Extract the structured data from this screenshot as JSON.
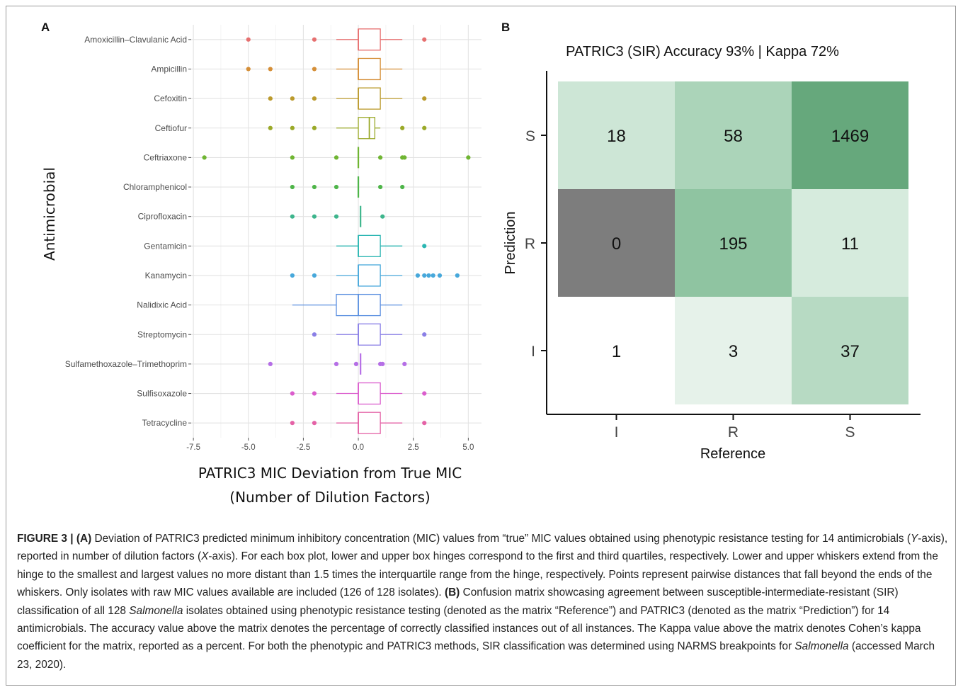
{
  "panel_labels": {
    "a": "A",
    "b": "B"
  },
  "chart_data": [
    {
      "type": "boxplot",
      "panel": "A",
      "xlabel_line1": "PATRIC3 MIC Deviation from True MIC",
      "xlabel_line2": "(Number of Dilution Factors)",
      "ylabel": "Antimicrobial",
      "xlim": [
        -7.6,
        5.6
      ],
      "xticks": [
        -7.5,
        -5.0,
        -2.5,
        0.0,
        2.5,
        5.0
      ],
      "xtick_labels": [
        "-7.5",
        "-5.0",
        "-2.5",
        "0.0",
        "2.5",
        "5.0"
      ],
      "grid": true,
      "categories": [
        {
          "name": "Amoxicillin–Clavulanic Acid",
          "color": "#e66f6f",
          "q1": 0,
          "median": 0,
          "q3": 1,
          "wlo": -1,
          "whi": 2,
          "outliers": [
            -5,
            -2,
            3
          ]
        },
        {
          "name": "Ampicillin",
          "color": "#d58e36",
          "q1": 0,
          "median": 0,
          "q3": 1,
          "wlo": -1,
          "whi": 2,
          "outliers": [
            -5,
            -4,
            -2
          ]
        },
        {
          "name": "Cefoxitin",
          "color": "#bb9a2c",
          "q1": 0,
          "median": 0,
          "q3": 1,
          "wlo": -1,
          "whi": 2,
          "outliers": [
            -4,
            -3,
            -2,
            3
          ]
        },
        {
          "name": "Ceftiofur",
          "color": "#9aa928",
          "q1": 0,
          "median": 0.5,
          "q3": 0.75,
          "wlo": -1,
          "whi": 1,
          "outliers": [
            -4,
            -3,
            -2,
            2,
            3
          ]
        },
        {
          "name": "Ceftriaxone",
          "color": "#6fb532",
          "q1": 0,
          "median": 0,
          "q3": 0,
          "wlo": 0,
          "whi": 0,
          "outliers": [
            -7,
            -3,
            -1,
            1,
            2,
            2.1,
            5
          ]
        },
        {
          "name": "Chloramphenicol",
          "color": "#4eb549",
          "q1": 0,
          "median": 0,
          "q3": 0,
          "wlo": 0,
          "whi": 0,
          "outliers": [
            -3,
            -2,
            -1,
            1,
            2
          ]
        },
        {
          "name": "Ciprofloxacin",
          "color": "#3db58c",
          "q1": 0.1,
          "median": 0.1,
          "q3": 0.1,
          "wlo": 0.1,
          "whi": 0.1,
          "outliers": [
            -3,
            -2,
            -1,
            1.1
          ]
        },
        {
          "name": "Gentamicin",
          "color": "#2bb6b2",
          "q1": 0,
          "median": 0,
          "q3": 1,
          "wlo": -1,
          "whi": 2,
          "outliers": [
            3
          ]
        },
        {
          "name": "Kanamycin",
          "color": "#47a8db",
          "q1": 0,
          "median": 0,
          "q3": 1,
          "wlo": -1,
          "whi": 2,
          "outliers": [
            -3,
            -2,
            2.7,
            3,
            3.2,
            3.4,
            3.7,
            4.5
          ]
        },
        {
          "name": "Nalidixic Acid",
          "color": "#5a8fe0",
          "q1": -1,
          "median": 0,
          "q3": 1,
          "wlo": -3,
          "whi": 2,
          "outliers": []
        },
        {
          "name": "Streptomycin",
          "color": "#8a7fe6",
          "q1": 0,
          "median": 0,
          "q3": 1,
          "wlo": -1,
          "whi": 2,
          "outliers": [
            -2,
            3
          ]
        },
        {
          "name": "Sulfamethoxazole–Trimethoprim",
          "color": "#b56ee6",
          "q1": 0.1,
          "median": 0.1,
          "q3": 0.1,
          "wlo": 0.1,
          "whi": 0.1,
          "outliers": [
            -4,
            -1,
            -0.1,
            1,
            1.1,
            2.1
          ]
        },
        {
          "name": "Sulfisoxazole",
          "color": "#db5dcd",
          "q1": 0,
          "median": 0,
          "q3": 1,
          "wlo": -1,
          "whi": 2,
          "outliers": [
            -3,
            -2,
            3
          ]
        },
        {
          "name": "Tetracycline",
          "color": "#e462a6",
          "q1": 0,
          "median": 0,
          "q3": 1,
          "wlo": -1,
          "whi": 2,
          "outliers": [
            -3,
            -2,
            3
          ]
        }
      ]
    },
    {
      "type": "heatmap",
      "panel": "B",
      "title": "PATRIC3 (SIR) Accuracy 93% | Kappa 72%",
      "xlabel": "Reference",
      "ylabel": "Prediction",
      "x_categories": [
        "I",
        "R",
        "S"
      ],
      "y_categories": [
        "S",
        "R",
        "I"
      ],
      "cells": [
        {
          "pred": "S",
          "ref": "I",
          "value": 18,
          "color": "#cde6d6"
        },
        {
          "pred": "S",
          "ref": "R",
          "value": 58,
          "color": "#abd4b9"
        },
        {
          "pred": "S",
          "ref": "S",
          "value": 1469,
          "color": "#66a87c"
        },
        {
          "pred": "R",
          "ref": "I",
          "value": 0,
          "color": "#7d7d7d"
        },
        {
          "pred": "R",
          "ref": "R",
          "value": 195,
          "color": "#8fc4a1"
        },
        {
          "pred": "R",
          "ref": "S",
          "value": 11,
          "color": "#d6ebdd"
        },
        {
          "pred": "I",
          "ref": "I",
          "value": 1,
          "color": "#ffffff"
        },
        {
          "pred": "I",
          "ref": "R",
          "value": 3,
          "color": "#e6f2ea"
        },
        {
          "pred": "I",
          "ref": "S",
          "value": 37,
          "color": "#b7dac3"
        }
      ]
    }
  ],
  "caption": {
    "lead": "FIGURE 3 | (A)",
    "s1": " Deviation of PATRIC3 predicted minimum inhibitory concentration (MIC) values from “true” MIC values obtained using phenotypic resistance testing for 14 antimicrobials (",
    "yaxis_italic": "Y",
    "s2": "-axis), reported in number of dilution factors (",
    "xaxis_italic": "X",
    "s3": "-axis). For each box plot, lower and upper box hinges correspond to the first and third quartiles, respectively. Lower and upper whiskers extend from the hinge to the smallest and largest values no more distant than 1.5 times the interquartile range from the hinge, respectively. Points represent pairwise distances that fall beyond the ends of the whiskers. Only isolates with raw MIC values available are included (126 of 128 isolates). ",
    "b_label": "(B)",
    "s4": " Confusion matrix showcasing agreement between susceptible-intermediate-resistant (SIR) classification of all 128 ",
    "salmonella1": "Salmonella",
    "s5": " isolates obtained using phenotypic resistance testing (denoted as the matrix “Reference”) and PATRIC3 (denoted as the matrix “Prediction”) for 14 antimicrobials. The accuracy value above the matrix denotes the percentage of correctly classified instances out of all instances. The Kappa value above the matrix denotes Cohen’s kappa coefficient for the matrix, reported as a percent. For both the phenotypic and PATRIC3 methods, SIR classification was determined using NARMS breakpoints for ",
    "salmonella2": "Salmonella",
    "s6": " (accessed March 23, 2020)."
  }
}
